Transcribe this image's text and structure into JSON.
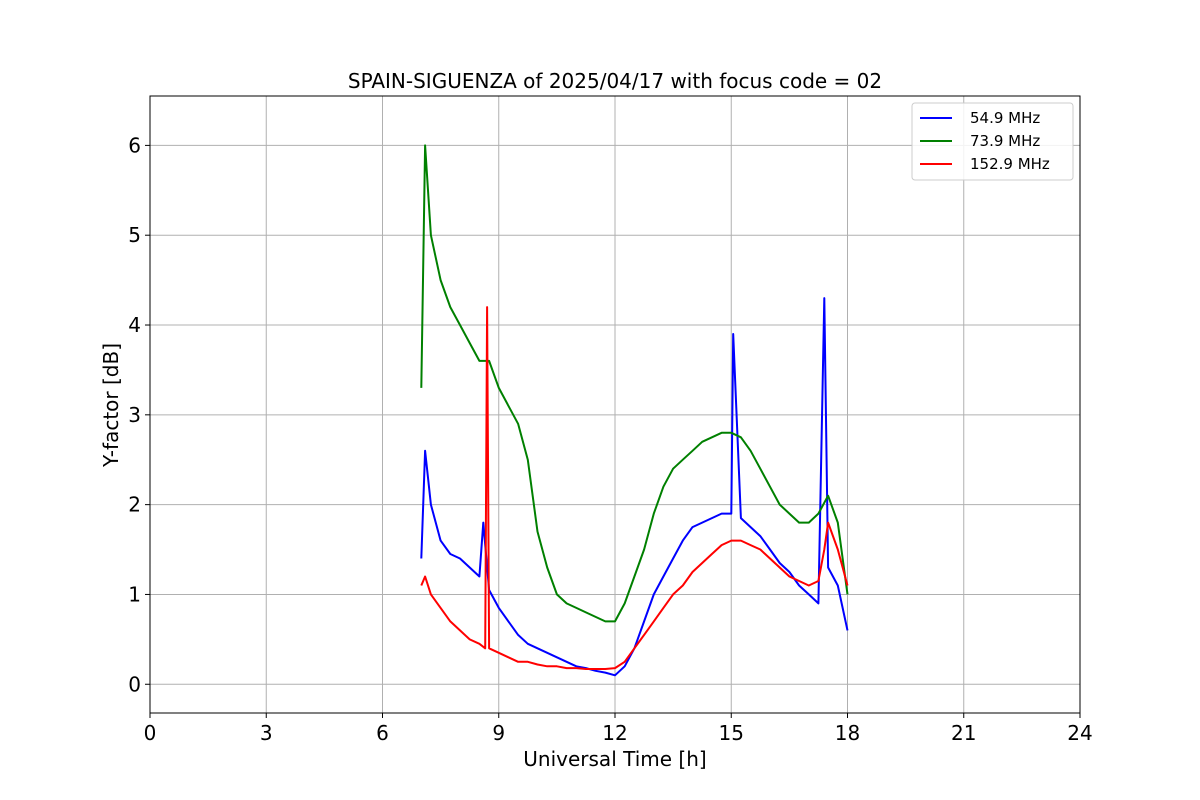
{
  "chart_data": {
    "type": "line",
    "title": "SPAIN-SIGUENZA of 2025/04/17 with focus code = 02",
    "xlabel": "Universal Time [h]",
    "ylabel": "Y-factor [dB]",
    "xlim": [
      0,
      24
    ],
    "ylim": [
      -0.32,
      6.55
    ],
    "xticks": [
      0,
      3,
      6,
      9,
      12,
      15,
      18,
      21,
      24
    ],
    "yticks": [
      0,
      1,
      2,
      3,
      4,
      5,
      6
    ],
    "grid": true,
    "legend_position": "top-right",
    "series": [
      {
        "name": " 54.9 MHz",
        "color": "#0000ff",
        "x": [
          7.0,
          7.1,
          7.25,
          7.5,
          7.75,
          8.0,
          8.25,
          8.5,
          8.6,
          8.75,
          9.0,
          9.25,
          9.5,
          9.75,
          10.0,
          10.25,
          10.5,
          10.75,
          11.0,
          11.25,
          11.5,
          11.75,
          12.0,
          12.25,
          12.5,
          12.75,
          13.0,
          13.25,
          13.5,
          13.75,
          14.0,
          14.25,
          14.5,
          14.75,
          15.0,
          15.05,
          15.25,
          15.5,
          15.75,
          16.0,
          16.25,
          16.5,
          16.75,
          17.0,
          17.25,
          17.4,
          17.5,
          17.75,
          18.0
        ],
        "values": [
          1.4,
          2.6,
          2.0,
          1.6,
          1.45,
          1.4,
          1.3,
          1.2,
          1.8,
          1.05,
          0.85,
          0.7,
          0.55,
          0.45,
          0.4,
          0.35,
          0.3,
          0.25,
          0.2,
          0.18,
          0.15,
          0.13,
          0.1,
          0.2,
          0.4,
          0.7,
          1.0,
          1.2,
          1.4,
          1.6,
          1.75,
          1.8,
          1.85,
          1.9,
          1.9,
          3.9,
          1.85,
          1.75,
          1.65,
          1.5,
          1.35,
          1.25,
          1.1,
          1.0,
          0.9,
          4.3,
          1.3,
          1.1,
          0.6
        ]
      },
      {
        "name": " 73.9 MHz",
        "color": "#008000",
        "x": [
          7.0,
          7.1,
          7.25,
          7.5,
          7.75,
          8.0,
          8.25,
          8.5,
          8.75,
          9.0,
          9.25,
          9.5,
          9.75,
          10.0,
          10.25,
          10.5,
          10.75,
          11.0,
          11.25,
          11.5,
          11.75,
          12.0,
          12.25,
          12.5,
          12.75,
          13.0,
          13.25,
          13.5,
          13.75,
          14.0,
          14.25,
          14.5,
          14.75,
          15.0,
          15.25,
          15.5,
          15.75,
          16.0,
          16.25,
          16.5,
          16.75,
          17.0,
          17.25,
          17.5,
          17.75,
          18.0
        ],
        "values": [
          3.3,
          6.0,
          5.0,
          4.5,
          4.2,
          4.0,
          3.8,
          3.6,
          3.6,
          3.3,
          3.1,
          2.9,
          2.5,
          1.7,
          1.3,
          1.0,
          0.9,
          0.85,
          0.8,
          0.75,
          0.7,
          0.7,
          0.9,
          1.2,
          1.5,
          1.9,
          2.2,
          2.4,
          2.5,
          2.6,
          2.7,
          2.75,
          2.8,
          2.8,
          2.75,
          2.6,
          2.4,
          2.2,
          2.0,
          1.9,
          1.8,
          1.8,
          1.9,
          2.1,
          1.8,
          1.0
        ]
      },
      {
        "name": "152.9 MHz",
        "color": "#ff0000",
        "x": [
          7.0,
          7.1,
          7.25,
          7.5,
          7.75,
          8.0,
          8.25,
          8.5,
          8.65,
          8.7,
          8.75,
          9.0,
          9.25,
          9.5,
          9.75,
          10.0,
          10.25,
          10.5,
          10.75,
          11.0,
          11.25,
          11.5,
          11.75,
          12.0,
          12.25,
          12.5,
          12.75,
          13.0,
          13.25,
          13.5,
          13.75,
          14.0,
          14.25,
          14.5,
          14.75,
          15.0,
          15.25,
          15.5,
          15.75,
          16.0,
          16.25,
          16.5,
          16.75,
          17.0,
          17.25,
          17.4,
          17.5,
          17.75,
          18.0
        ],
        "values": [
          1.1,
          1.2,
          1.0,
          0.85,
          0.7,
          0.6,
          0.5,
          0.45,
          0.4,
          4.2,
          0.4,
          0.35,
          0.3,
          0.25,
          0.25,
          0.22,
          0.2,
          0.2,
          0.18,
          0.18,
          0.17,
          0.17,
          0.17,
          0.18,
          0.25,
          0.4,
          0.55,
          0.7,
          0.85,
          1.0,
          1.1,
          1.25,
          1.35,
          1.45,
          1.55,
          1.6,
          1.6,
          1.55,
          1.5,
          1.4,
          1.3,
          1.2,
          1.15,
          1.1,
          1.15,
          1.5,
          1.8,
          1.5,
          1.1
        ]
      }
    ]
  }
}
